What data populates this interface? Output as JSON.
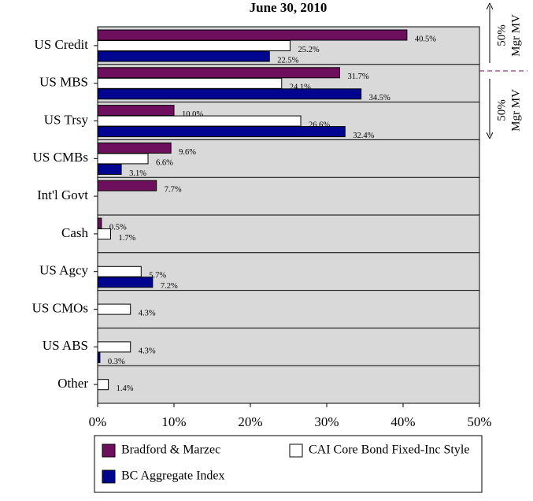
{
  "chart_data": {
    "type": "hbar",
    "title": "June 30, 2010",
    "categories": [
      "US Credit",
      "US  MBS",
      "US Trsy",
      "US CMBs",
      "Int'l Govt",
      "Cash",
      "US Agcy",
      "US CMOs",
      "US  ABS",
      "Other"
    ],
    "series": [
      {
        "name": "Bradford & Marzec",
        "color": "#6e0f5e",
        "values": [
          40.5,
          31.7,
          10.0,
          9.6,
          7.7,
          0.5,
          null,
          null,
          null,
          null
        ],
        "value_labels": [
          "40.5%",
          "31.7%",
          "10.0%",
          "9.6%",
          "7.7%",
          "0.5%",
          null,
          null,
          null,
          null
        ]
      },
      {
        "name": "CAI Core Bond Fixed-Inc Style",
        "color": "#ffffff",
        "values": [
          25.2,
          24.1,
          26.6,
          6.6,
          null,
          1.7,
          5.7,
          4.3,
          4.3,
          1.4
        ],
        "value_labels": [
          "25.2%",
          "24.1%",
          "26.6%",
          "6.6%",
          null,
          "1.7%",
          "5.7%",
          "4.3%",
          "4.3%",
          "1.4%"
        ]
      },
      {
        "name": "BC Aggregate Index",
        "color": "#00058f",
        "values": [
          22.5,
          34.5,
          32.4,
          3.1,
          null,
          null,
          7.2,
          null,
          0.3,
          null
        ],
        "value_labels": [
          "22.5%",
          "34.5%",
          "32.4%",
          "3.1%",
          null,
          null,
          "7.2%",
          null,
          "0.3%",
          null
        ]
      }
    ],
    "xlim": [
      0,
      50
    ],
    "xticks": [
      {
        "value": 0,
        "label": "0%"
      },
      {
        "value": 10,
        "label": "10%"
      },
      {
        "value": 20,
        "label": "20%"
      },
      {
        "value": 30,
        "label": "30%"
      },
      {
        "value": 40,
        "label": "40%"
      },
      {
        "value": 50,
        "label": "50%"
      }
    ],
    "annotations": [
      "50%",
      "Mgr MV",
      "50%",
      "Mgr MV"
    ]
  }
}
